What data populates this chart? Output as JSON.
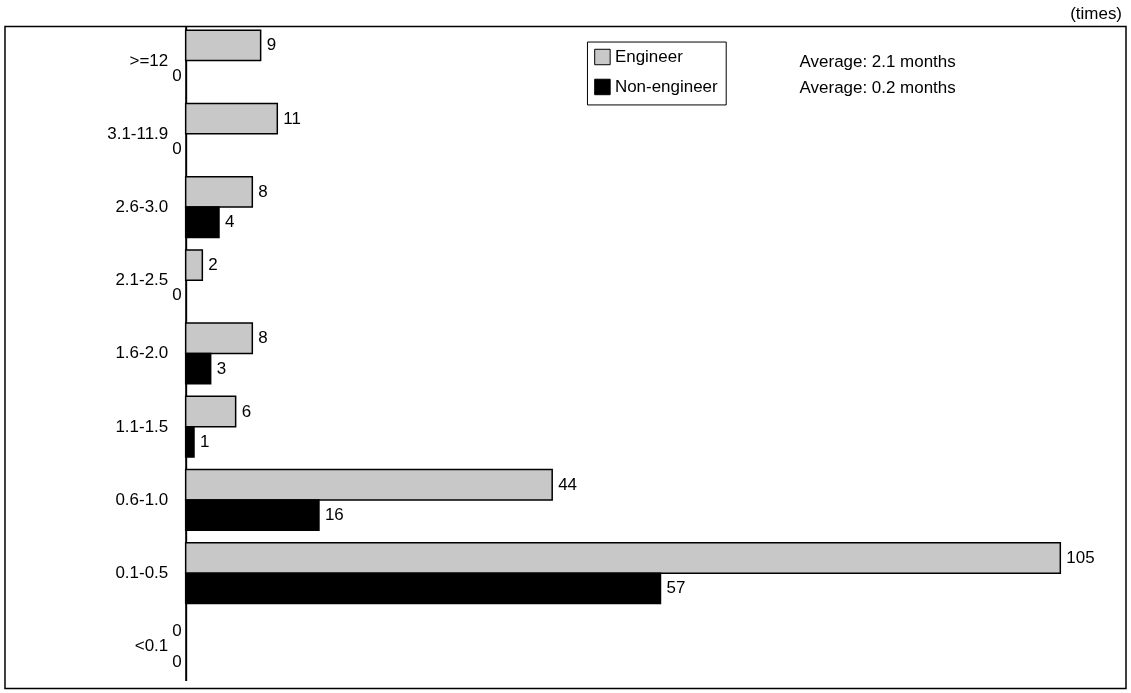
{
  "chart_data": {
    "type": "bar",
    "orientation": "horizontal",
    "categories": [
      ">=12",
      "3.1-11.9",
      "2.6-3.0",
      "2.1-2.5",
      "1.6-2.0",
      "1.1-1.5",
      "0.6-1.0",
      "0.1-0.5",
      "<0.1"
    ],
    "series": [
      {
        "name": "Engineer",
        "color": "#c8c8c8",
        "values": [
          9,
          11,
          8,
          2,
          8,
          6,
          44,
          105,
          0
        ]
      },
      {
        "name": "Non-engineer",
        "color": "#000000",
        "values": [
          0,
          0,
          4,
          0,
          3,
          1,
          16,
          57,
          0
        ]
      }
    ],
    "data_labels": true,
    "legend": "top right",
    "tick_labels": "y",
    "annotations": [
      "(times)",
      "Average: 2.1 months",
      "Average: 0.2 months"
    ]
  }
}
